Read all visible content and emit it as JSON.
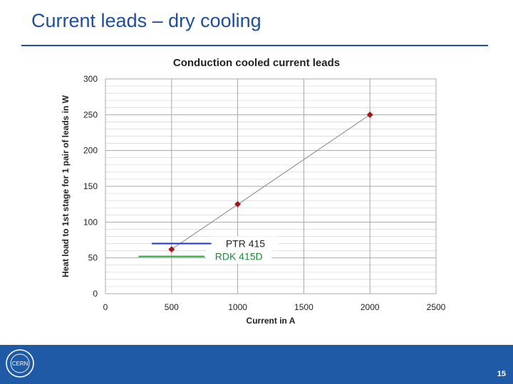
{
  "slide": {
    "title": "Current leads – dry cooling",
    "page_number": "15",
    "logo_text": "CERN",
    "accent_color": "#1f4e9a",
    "footer_color": "#1f5aa6"
  },
  "chart_data": {
    "type": "scatter",
    "title": "Conduction cooled current leads",
    "xlabel": "Current in A",
    "ylabel": "Heat load to 1st stage for 1 pair of leads in W",
    "xlim": [
      0,
      2500
    ],
    "ylim": [
      0,
      300
    ],
    "x_ticks": [
      0,
      500,
      1000,
      1500,
      2000,
      2500
    ],
    "y_ticks": [
      0,
      50,
      100,
      150,
      200,
      250,
      300
    ],
    "grid": true,
    "series": [
      {
        "x": [
          500,
          1000,
          2000
        ],
        "y": [
          62,
          125,
          250
        ],
        "color": "#a01818",
        "marker": "diamond"
      }
    ],
    "trendline": {
      "x": [
        500,
        2000
      ],
      "y": [
        62,
        250
      ],
      "color": "#888888"
    },
    "annotations": [
      {
        "label": "PTR 415",
        "y": 70,
        "x_from": 350,
        "x_to": 800,
        "color": "#2030c8",
        "text_color": "#222222"
      },
      {
        "label": "RDK 415D",
        "y": 52,
        "x_from": 250,
        "x_to": 750,
        "color": "#30a040",
        "text_color": "#1a8a3a"
      }
    ]
  }
}
